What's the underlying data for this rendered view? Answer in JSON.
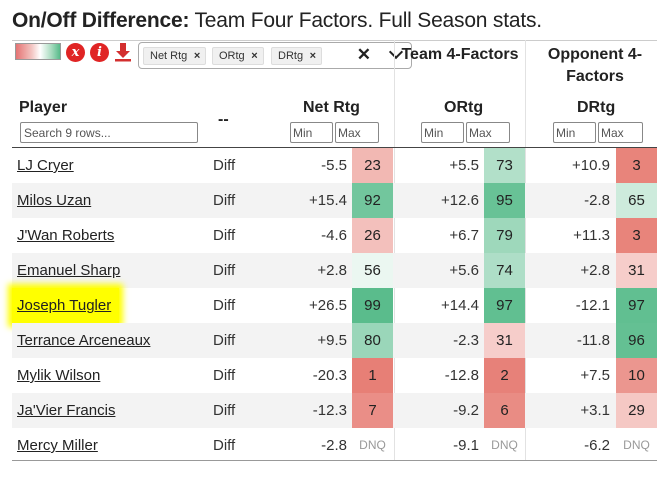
{
  "title": {
    "bold": "On/Off Difference:",
    "rest": " Team Four Factors. Full Season stats."
  },
  "toolbar": {
    "clear_glyph": "x",
    "info_glyph": "i"
  },
  "filter": {
    "chips": [
      "Net Rtg",
      "ORtg",
      "DRtg"
    ],
    "chip_x": "×",
    "clear": "✕"
  },
  "groups": {
    "team": "Team 4-Factors",
    "opp": "Opponent 4-Factors"
  },
  "headers": {
    "player": "Player",
    "dash": "--",
    "netrtg": "Net Rtg",
    "ortg": "ORtg",
    "drtg": "DRtg"
  },
  "search": {
    "placeholder": "Search 9 rows..."
  },
  "minmax": {
    "min": "Min",
    "max": "Max"
  },
  "colors": {
    "low": "#e67c73",
    "high": "#57bb8a"
  },
  "rows": [
    {
      "player": "LJ Cryer",
      "diff": "Diff",
      "net": "-5.5",
      "net_pct": "23",
      "o": "+5.5",
      "o_pct": "73",
      "d": "+10.9",
      "d_pct": "3"
    },
    {
      "player": "Milos Uzan",
      "diff": "Diff",
      "net": "+15.4",
      "net_pct": "92",
      "o": "+12.6",
      "o_pct": "95",
      "d": "-2.8",
      "d_pct": "65"
    },
    {
      "player": "J'Wan Roberts",
      "diff": "Diff",
      "net": "-4.6",
      "net_pct": "26",
      "o": "+6.7",
      "o_pct": "79",
      "d": "+11.3",
      "d_pct": "3"
    },
    {
      "player": "Emanuel Sharp",
      "diff": "Diff",
      "net": "+2.8",
      "net_pct": "56",
      "o": "+5.6",
      "o_pct": "74",
      "d": "+2.8",
      "d_pct": "31"
    },
    {
      "player": "Joseph Tugler",
      "diff": "Diff",
      "net": "+26.5",
      "net_pct": "99",
      "o": "+14.4",
      "o_pct": "97",
      "d": "-12.1",
      "d_pct": "97",
      "highlight": true
    },
    {
      "player": "Terrance Arceneaux",
      "diff": "Diff",
      "net": "+9.5",
      "net_pct": "80",
      "o": "-2.3",
      "o_pct": "31",
      "d": "-11.8",
      "d_pct": "96"
    },
    {
      "player": "Mylik Wilson",
      "diff": "Diff",
      "net": "-20.3",
      "net_pct": "1",
      "o": "-12.8",
      "o_pct": "2",
      "d": "+7.5",
      "d_pct": "10"
    },
    {
      "player": "Ja'Vier Francis",
      "diff": "Diff",
      "net": "-12.3",
      "net_pct": "7",
      "o": "-9.2",
      "o_pct": "6",
      "d": "+3.1",
      "d_pct": "29"
    },
    {
      "player": "Mercy Miller",
      "diff": "Diff",
      "net": "-2.8",
      "net_pct": "DNQ",
      "o": "-9.1",
      "o_pct": "DNQ",
      "d": "-6.2",
      "d_pct": "DNQ"
    }
  ]
}
